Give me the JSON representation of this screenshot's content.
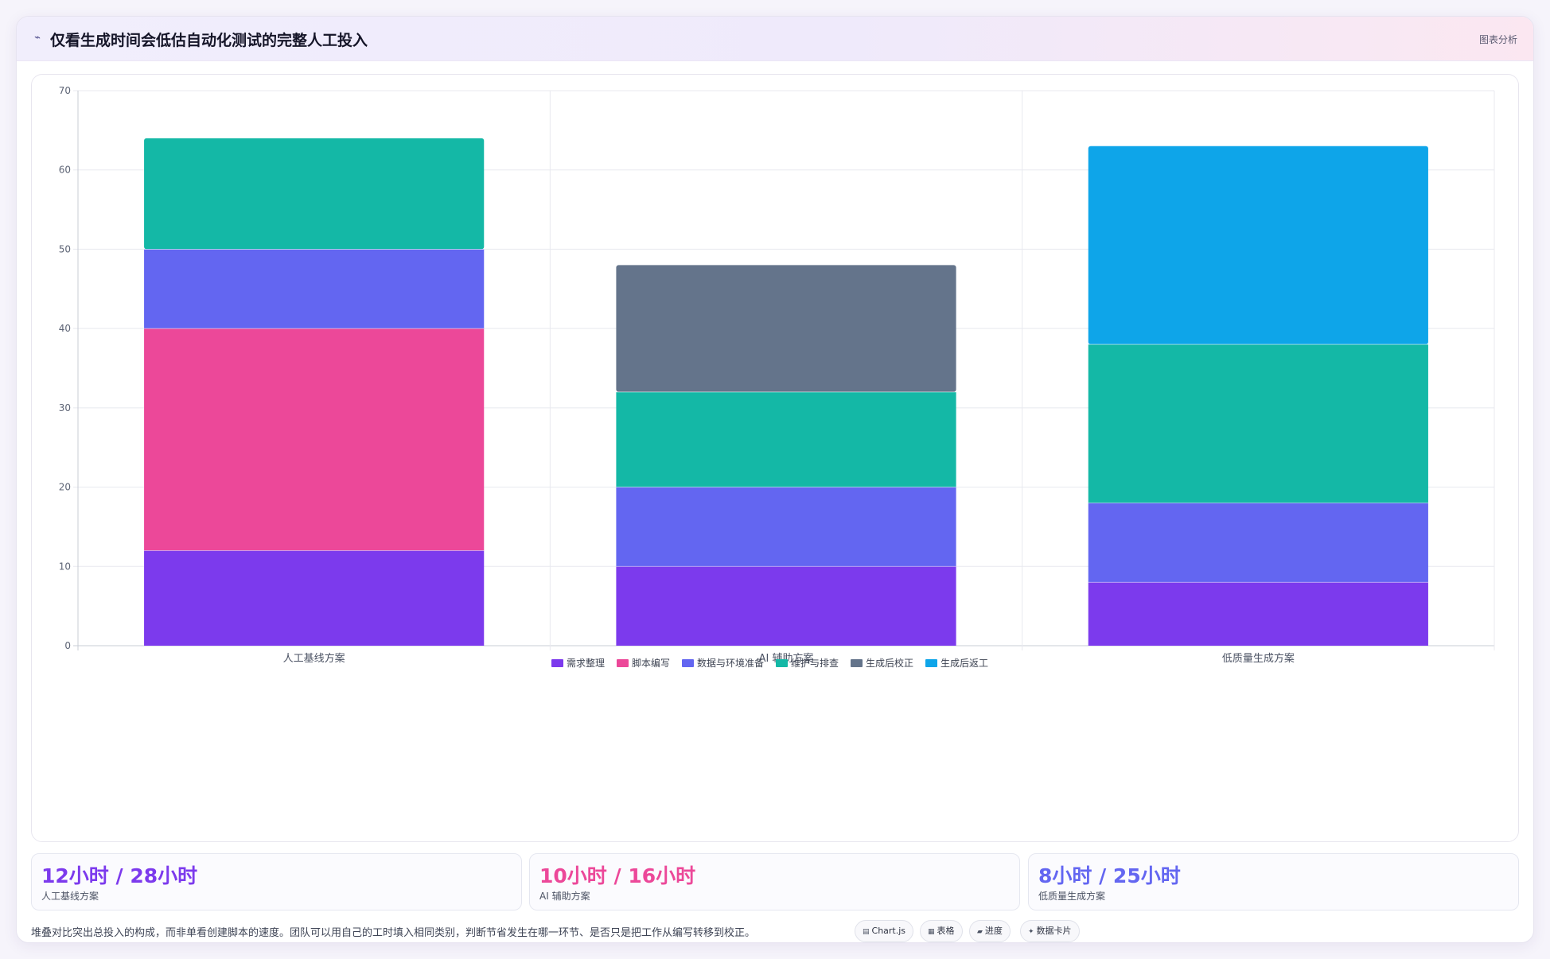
{
  "header": {
    "icon": "chart-line-icon",
    "title": "仅看生成时间会低估自动化测试的完整人工投入",
    "tag": "图表分析"
  },
  "chart_data": {
    "type": "bar",
    "stacked": true,
    "categories": [
      "人工基线方案",
      "AI 辅助方案",
      "低质量生成方案"
    ],
    "ylim": [
      0,
      70
    ],
    "yticks": [
      0,
      10,
      20,
      30,
      40,
      50,
      60,
      70
    ],
    "grid": true,
    "legend_position": "bottom",
    "series": [
      {
        "name": "需求整理",
        "color": "#7c3aed",
        "values": [
          12,
          10,
          8
        ]
      },
      {
        "name": "脚本编写",
        "color": "#ec4899",
        "values": [
          28,
          0,
          0
        ]
      },
      {
        "name": "数据与环境准备",
        "color": "#6366f1",
        "values": [
          10,
          10,
          10
        ]
      },
      {
        "name": "维护与排查",
        "color": "#14b8a6",
        "values": [
          14,
          12,
          20
        ]
      },
      {
        "name": "生成后校正",
        "color": "#64748b",
        "values": [
          0,
          16,
          0
        ]
      },
      {
        "name": "生成后返工",
        "color": "#0ea5e9",
        "values": [
          0,
          0,
          25
        ]
      }
    ]
  },
  "stats": [
    {
      "value": "12小时 / 28小时",
      "label": "人工基线方案",
      "color": "#7c3aed"
    },
    {
      "value": "10小时 / 16小时",
      "label": "AI 辅助方案",
      "color": "#ec4899"
    },
    {
      "value": "8小时 / 25小时",
      "label": "低质量生成方案",
      "color": "#6366f1"
    }
  ],
  "footer": {
    "note": "堆叠对比突出总投入的构成，而非单看创建脚本的速度。团队可以用自己的工时填入相同类别，判断节省发生在哪一环节、是否只是把工作从编写转移到校正。"
  },
  "chips": [
    {
      "icon": "chart-icon",
      "label": "Chart.js"
    },
    {
      "icon": "table-icon",
      "label": "表格"
    },
    {
      "icon": "progress-icon",
      "label": "进度"
    },
    {
      "icon": "sparkle-icon",
      "label": "数据卡片"
    }
  ]
}
